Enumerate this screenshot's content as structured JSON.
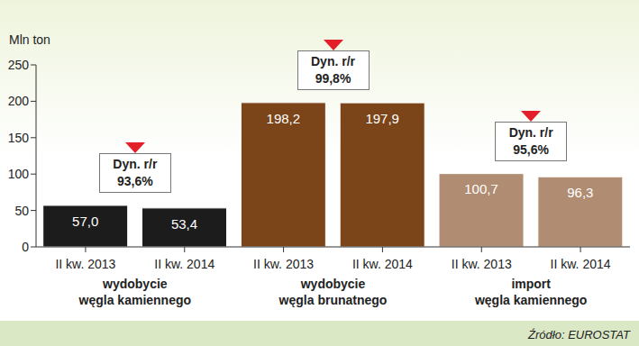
{
  "chart_data": {
    "type": "bar",
    "y_label": "Mln ton",
    "source": "Źródło: EUROSTAT",
    "categories": [
      "II kw. 2013",
      "II kw. 2014",
      "II kw. 2013",
      "II kw. 2014",
      "II kw. 2013",
      "II kw. 2014"
    ],
    "values": [
      57.0,
      53.4,
      198.2,
      197.9,
      100.7,
      96.3
    ],
    "value_labels": [
      "57,0",
      "53,4",
      "198,2",
      "197,9",
      "100,7",
      "96,3"
    ],
    "colors": [
      "#1c1c1c",
      "#1c1c1c",
      "#7b4419",
      "#7b4419",
      "#b08c72",
      "#b08c72"
    ],
    "data_labels": true,
    "ylim": [
      0,
      250
    ],
    "yticks": [
      0,
      50,
      100,
      150,
      200,
      250
    ],
    "grid": false,
    "groups": [
      {
        "label": [
          "wydobycie",
          "węgla kamiennego"
        ],
        "annotation_title": "Dyn. r/r",
        "change": 93.6,
        "change_label": "93,6%"
      },
      {
        "label": [
          "wydobycie",
          "węgla brunatnego"
        ],
        "annotation_title": "Dyn. r/r",
        "change": 99.8,
        "change_label": "99,8%"
      },
      {
        "label": [
          "import",
          "węgla kamiennego"
        ],
        "annotation_title": "Dyn. r/r",
        "change": 95.6,
        "change_label": "95,6%"
      }
    ]
  }
}
